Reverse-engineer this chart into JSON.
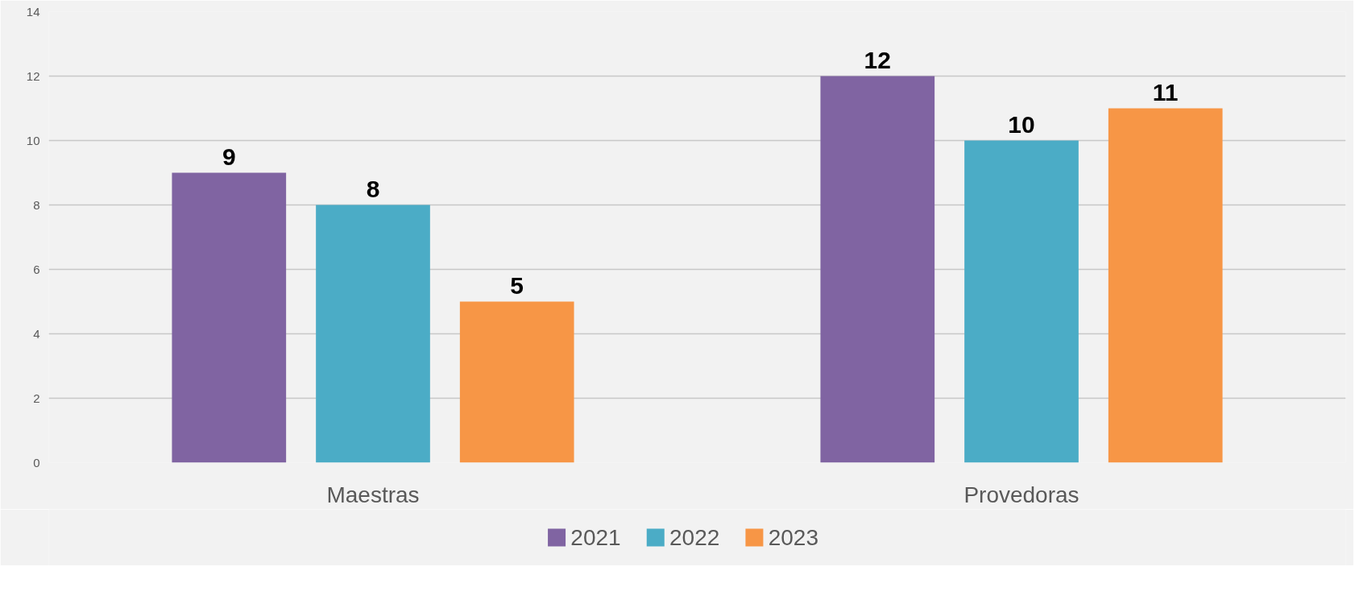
{
  "chart_data": {
    "type": "bar",
    "categories": [
      "Maestras",
      "Provedoras"
    ],
    "series": [
      {
        "name": "2021",
        "color": "#8064a2",
        "values": [
          9,
          12
        ]
      },
      {
        "name": "2022",
        "color": "#4bacc6",
        "values": [
          8,
          10
        ]
      },
      {
        "name": "2023",
        "color": "#f79646",
        "values": [
          5,
          11
        ]
      }
    ],
    "ylim": [
      0,
      14
    ],
    "yticks": [
      0,
      2,
      4,
      6,
      8,
      10,
      12,
      14
    ],
    "grid": "y",
    "legend": "bottom",
    "data_labels": true
  }
}
